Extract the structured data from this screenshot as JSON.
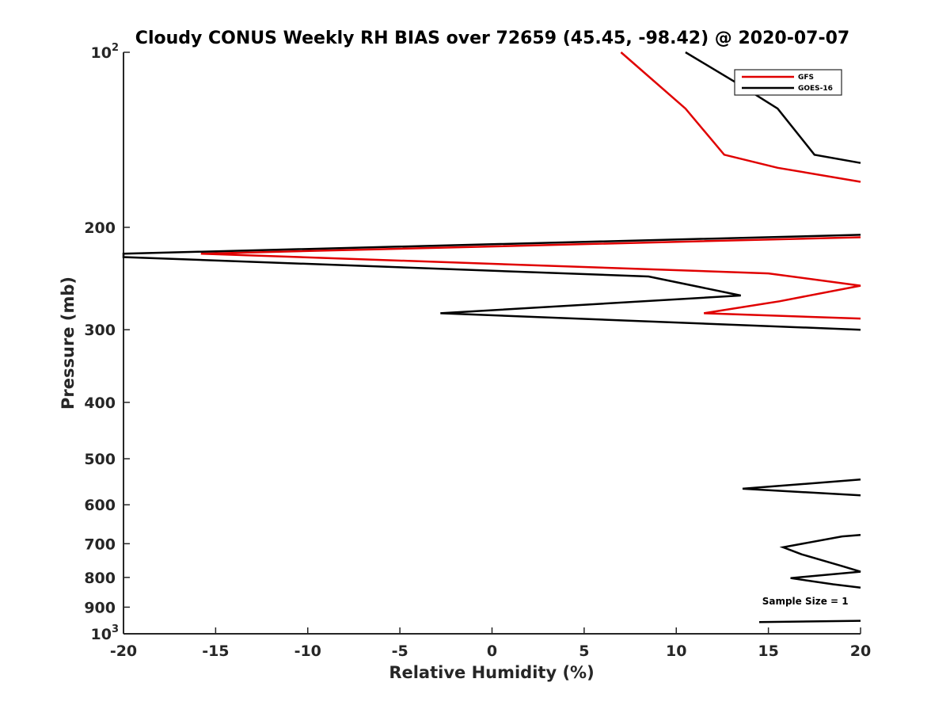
{
  "chart_data": {
    "type": "line",
    "title": "Cloudy CONUS Weekly RH BIAS over 72659 (45.45, -98.42) @ 2020-07-07",
    "xlabel": "Relative Humidity (%)",
    "ylabel": "Pressure (mb)",
    "xlim": [
      -20,
      20
    ],
    "ylim": [
      100,
      1000
    ],
    "y_scale": "log",
    "y_reversed": true,
    "grid": false,
    "legend_position": "top-right",
    "x_ticks": [
      -20,
      -15,
      -10,
      -5,
      0,
      5,
      10,
      15,
      20
    ],
    "y_ticks": [
      {
        "value": 100,
        "label": "10",
        "sup": "2"
      },
      {
        "value": 200,
        "label": "200",
        "sup": ""
      },
      {
        "value": 300,
        "label": "300",
        "sup": ""
      },
      {
        "value": 400,
        "label": "400",
        "sup": ""
      },
      {
        "value": 500,
        "label": "500",
        "sup": ""
      },
      {
        "value": 600,
        "label": "600",
        "sup": ""
      },
      {
        "value": 700,
        "label": "700",
        "sup": ""
      },
      {
        "value": 800,
        "label": "800",
        "sup": ""
      },
      {
        "value": 900,
        "label": "900",
        "sup": ""
      },
      {
        "value": 1000,
        "label": "10",
        "sup": "3"
      }
    ],
    "series": [
      {
        "name": "GFS",
        "color": "#e00000",
        "segments": [
          [
            [
              7.0,
              100
            ],
            [
              10.5,
              125
            ],
            [
              12.6,
              150
            ],
            [
              15.5,
              158
            ],
            [
              20,
              167
            ]
          ],
          [
            [
              20,
              208
            ],
            [
              -15.8,
              222
            ],
            [
              15.0,
              240
            ],
            [
              20,
              252
            ],
            [
              15.6,
              268
            ],
            [
              11.5,
              281
            ],
            [
              20,
              287
            ]
          ]
        ]
      },
      {
        "name": "GOES-16",
        "color": "#000000",
        "segments": [
          [
            [
              10.5,
              100
            ],
            [
              13.5,
              114
            ],
            [
              15.5,
              125
            ],
            [
              17.5,
              150
            ],
            [
              20,
              155
            ]
          ],
          [
            [
              20,
              206
            ],
            [
              -20,
              222
            ],
            [
              -20,
              225
            ],
            [
              8.5,
              243
            ],
            [
              13.5,
              262
            ],
            [
              -2.8,
              281
            ],
            [
              20,
              300
            ]
          ],
          [
            [
              20,
              543
            ],
            [
              13.6,
              563
            ],
            [
              20,
              578
            ]
          ],
          [
            [
              20,
              676
            ],
            [
              19,
              680
            ],
            [
              15.8,
              710
            ],
            [
              16.8,
              730
            ],
            [
              19,
              765
            ],
            [
              20,
              782
            ],
            [
              16.2,
              802
            ],
            [
              18.5,
              822
            ],
            [
              20,
              833
            ]
          ],
          [
            [
              14.5,
              955
            ],
            [
              20,
              950
            ]
          ]
        ]
      }
    ],
    "annotations": [
      {
        "text": "Sample Size = 1",
        "x": 17.0,
        "y": 890
      }
    ]
  }
}
